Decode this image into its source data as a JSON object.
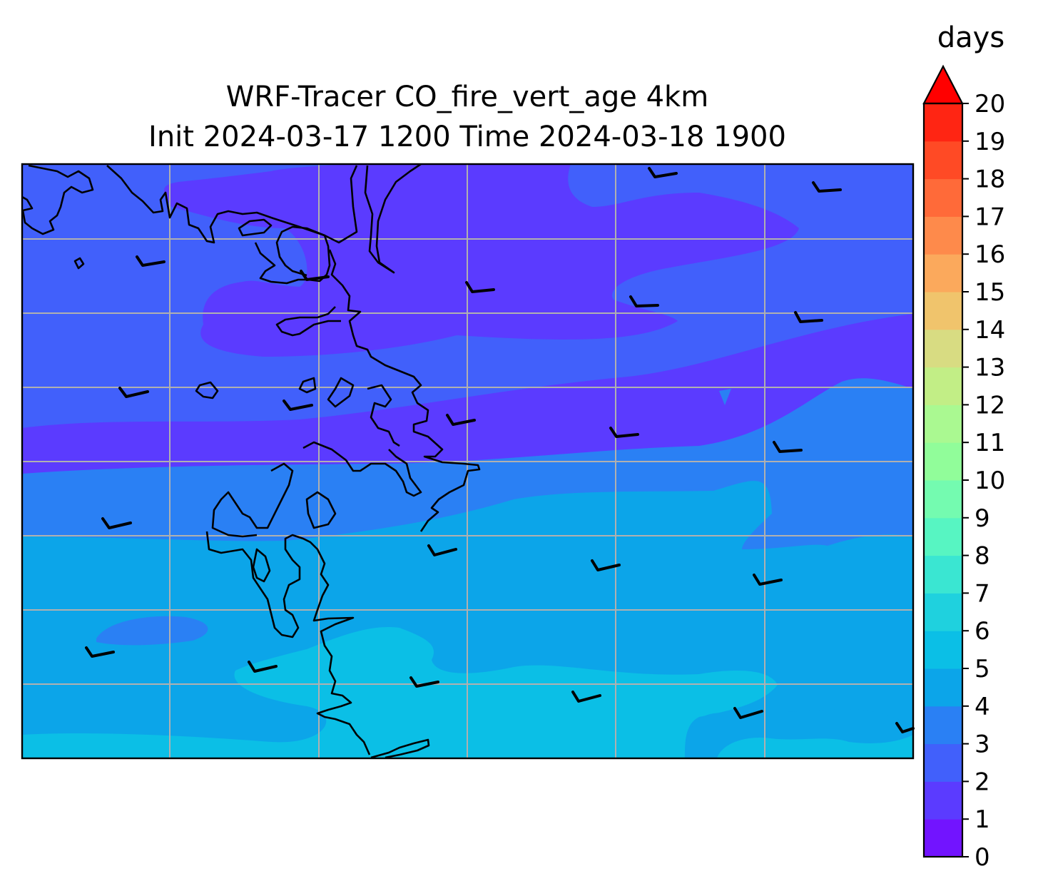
{
  "title": {
    "line1": "WRF-Tracer CO_fire_vert_age 4km",
    "line2": "Init 2024-03-17 1200 Time 2024-03-18 1900"
  },
  "colorbar": {
    "label": "days",
    "ticks": [
      "0",
      "1",
      "2",
      "3",
      "4",
      "5",
      "6",
      "7",
      "8",
      "9",
      "10",
      "11",
      "12",
      "13",
      "14",
      "15",
      "16",
      "17",
      "18",
      "19",
      "20"
    ],
    "extend": "max",
    "band_colors": [
      "#7214ff",
      "#5b3bff",
      "#4160fb",
      "#2a80f4",
      "#0ca5e9",
      "#0bbfe6",
      "#1fd1de",
      "#3ae6d2",
      "#57f5c2",
      "#74fbb0",
      "#91fd9a",
      "#aaf991",
      "#c2ee86",
      "#d8dc82",
      "#f0c46c",
      "#fba95c",
      "#fe8a4b",
      "#ff6a39",
      "#ff4a25",
      "#ff2513"
    ],
    "extend_color": "#ff0000"
  },
  "map": {
    "gridlines": true,
    "field_colors": [
      "#5b3bff",
      "#4160fb",
      "#2a80f4",
      "#0ca5e9",
      "#0bbfe6"
    ],
    "coastline_color": "#000000",
    "barb_color": "#000000"
  }
}
